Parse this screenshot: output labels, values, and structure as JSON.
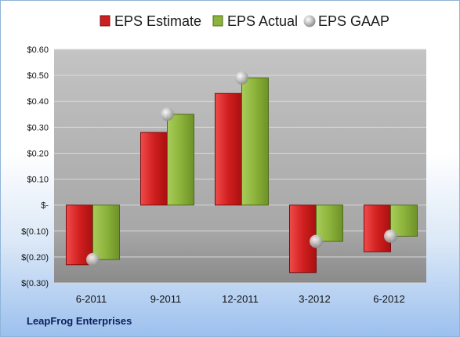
{
  "chart_data": {
    "type": "bar",
    "categories": [
      "6-2011",
      "9-2011",
      "12-2011",
      "3-2012",
      "6-2012"
    ],
    "series": [
      {
        "name": "EPS Estimate",
        "kind": "bar",
        "color": "#cc1f1f",
        "values": [
          -0.23,
          0.28,
          0.43,
          -0.26,
          -0.18
        ]
      },
      {
        "name": "EPS Actual",
        "kind": "bar",
        "color": "#8cb33a",
        "values": [
          -0.21,
          0.35,
          0.49,
          -0.14,
          -0.12
        ]
      },
      {
        "name": "EPS GAAP",
        "kind": "point",
        "color": "#b8b8b8",
        "values": [
          -0.21,
          0.35,
          0.49,
          -0.14,
          -0.12
        ]
      }
    ],
    "ylim": [
      -0.3,
      0.6
    ],
    "ytick_values": [
      0.6,
      0.5,
      0.4,
      0.3,
      0.2,
      0.1,
      0,
      -0.1,
      -0.2,
      -0.3
    ],
    "ytick_labels": [
      "$0.60",
      "$0.50",
      "$0.40",
      "$0.30",
      "$0.20",
      "$0.10",
      "$-",
      "$(0.10)",
      "$(0.20)",
      "$(0.30)"
    ],
    "grid": true,
    "legend": "top"
  },
  "company": "LeapFrog Enterprises"
}
